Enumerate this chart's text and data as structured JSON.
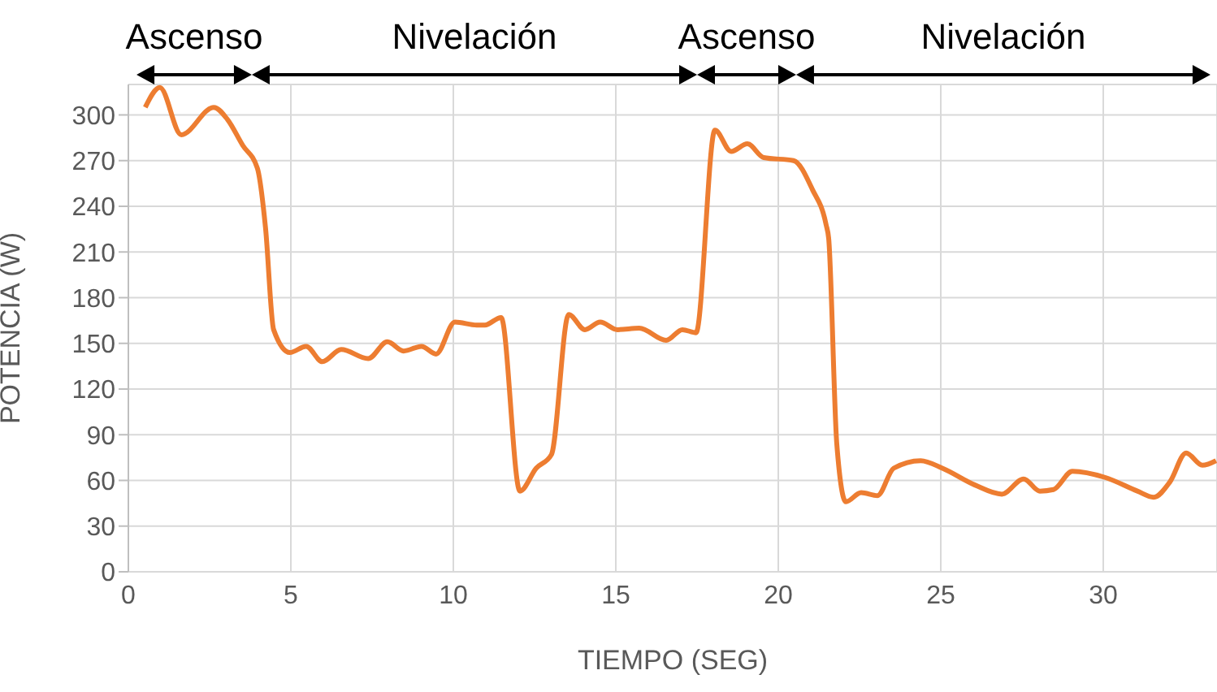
{
  "chart_data": {
    "type": "line",
    "xlabel": "TIEMPO (SEG)",
    "ylabel": "POTENCIA (W)",
    "x": [
      0.52,
      0.97,
      1.63,
      2.63,
      3.05,
      3.52,
      3.97,
      4.22,
      4.47,
      4.97,
      5.47,
      5.97,
      6.55,
      7.38,
      7.97,
      8.47,
      9.02,
      9.47,
      10.05,
      10.72,
      10.97,
      11.47,
      12.05,
      12.55,
      13.02,
      13.55,
      14.05,
      14.52,
      15.05,
      15.72,
      16.55,
      17.05,
      17.47,
      18.05,
      18.55,
      19.05,
      19.55,
      20.47,
      21.05,
      21.47,
      21.55,
      21.8,
      22.08,
      22.55,
      23.05,
      23.55,
      24.38,
      25.05,
      26.05,
      26.88,
      27.55,
      28.05,
      28.47,
      29.05,
      30.05,
      31.05,
      31.55,
      32.05,
      32.55,
      33.05,
      33.47
    ],
    "series": [
      {
        "color": "#ed7d31",
        "values": [
          305,
          318,
          287,
          305,
          297,
          280,
          265,
          226,
          159,
          144,
          148,
          138,
          146,
          140,
          151,
          145,
          148,
          143,
          164,
          162,
          162,
          167,
          53,
          68,
          77,
          169,
          159,
          164,
          159,
          160,
          152,
          159,
          157,
          290,
          276,
          281,
          272,
          270,
          251,
          228,
          219,
          84,
          46,
          52,
          50,
          68,
          73,
          68,
          57,
          51,
          61,
          53,
          54,
          66,
          62,
          53,
          49,
          59,
          78,
          70,
          73
        ]
      }
    ],
    "xlim": [
      0,
      33.5
    ],
    "xticks": [
      0,
      5,
      10,
      15,
      20,
      25,
      30
    ],
    "ylim": [
      0,
      320
    ],
    "yticks": [
      0,
      30,
      60,
      90,
      120,
      150,
      180,
      210,
      240,
      270,
      300
    ],
    "grid": true,
    "legend": false,
    "marker": "none",
    "line_style": "solid",
    "annotations": [
      "Ascenso",
      "Nivelación",
      "Ascenso",
      "Nivelación"
    ]
  }
}
